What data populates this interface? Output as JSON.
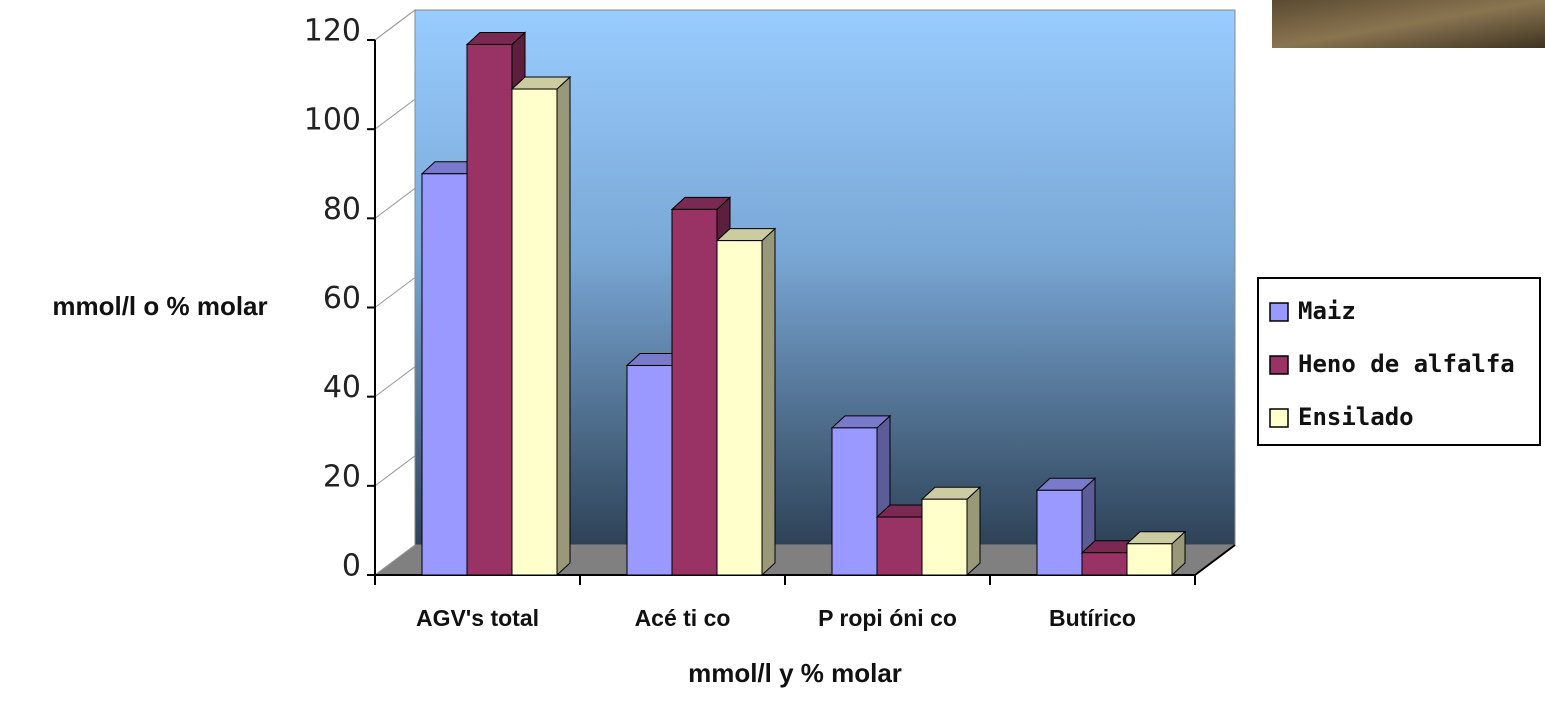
{
  "chart_data": {
    "type": "bar3d",
    "y_label": "mmol/l o % molar",
    "x_label": "mmol/l y % molar",
    "categories": [
      "AGV's total",
      "Acé ti co",
      "P ropi óni co",
      "Butírico"
    ],
    "series": [
      {
        "name": "Maiz",
        "color": "#9999ff",
        "values": [
          90,
          47,
          33,
          19
        ]
      },
      {
        "name": "Heno de alfalfa",
        "color": "#993366",
        "values": [
          119,
          82,
          13,
          5
        ]
      },
      {
        "name": "Ensilado",
        "color": "#ffffcc",
        "values": [
          109,
          75,
          17,
          7
        ]
      }
    ],
    "ylim": [
      0,
      120
    ],
    "yticks": [
      0,
      20,
      40,
      60,
      80,
      100,
      120
    ],
    "legend": "right"
  }
}
